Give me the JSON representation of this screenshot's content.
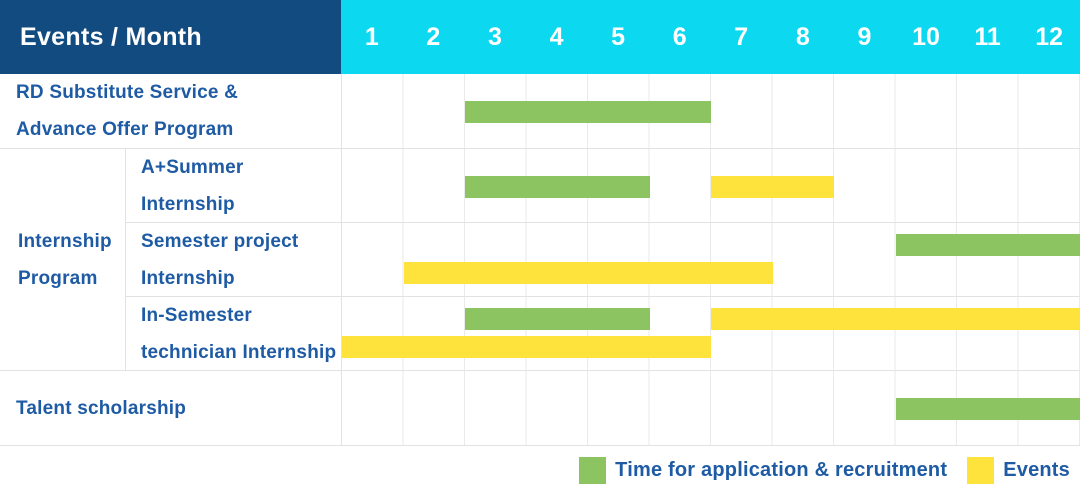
{
  "chart_data": {
    "type": "bar",
    "variant": "gantt-schedule",
    "header_title": "Events / Month",
    "months": [
      "1",
      "2",
      "3",
      "4",
      "5",
      "6",
      "7",
      "8",
      "9",
      "10",
      "11",
      "12"
    ],
    "x_axis_label": "Month",
    "x_range": [
      1,
      12
    ],
    "colors": {
      "header_bg": "#114b80",
      "months_bg": "#0cd8f0",
      "label_text": "#1e5ba4",
      "green": "#8cc462",
      "yellow": "#fde33c"
    },
    "groups": [
      {
        "id": "internship-program",
        "label_lines": [
          "Internship",
          "Program"
        ],
        "row_start": 2,
        "row_end": 4
      }
    ],
    "rows": [
      {
        "label_lines": [
          "RD Substitute Service &",
          "Advance Offer Program"
        ],
        "group": null,
        "bars": [
          {
            "type": "green",
            "start_month": 3,
            "end_month": 6,
            "lane": "single"
          }
        ]
      },
      {
        "label_lines": [
          "A+Summer",
          "Internship"
        ],
        "group": "internship-program",
        "bars": [
          {
            "type": "green",
            "start_month": 3,
            "end_month": 5,
            "lane": "single"
          },
          {
            "type": "yellow",
            "start_month": 7,
            "end_month": 8,
            "lane": "single"
          }
        ]
      },
      {
        "label_lines": [
          "Semester project",
          "Internship"
        ],
        "group": "internship-program",
        "bars": [
          {
            "type": "green",
            "start_month": 10,
            "end_month": 12,
            "lane": "top"
          },
          {
            "type": "yellow",
            "start_month": 2,
            "end_month": 7,
            "lane": "bottom"
          }
        ]
      },
      {
        "label_lines": [
          "In-Semester",
          "technician Internship"
        ],
        "group": "internship-program",
        "bars": [
          {
            "type": "green",
            "start_month": 3,
            "end_month": 5,
            "lane": "top"
          },
          {
            "type": "yellow",
            "start_month": 7,
            "end_month": 12,
            "lane": "top"
          },
          {
            "type": "yellow",
            "start_month": 1,
            "end_month": 6,
            "lane": "bottom"
          }
        ]
      },
      {
        "label_lines": [
          "Talent scholarship"
        ],
        "group": null,
        "bars": [
          {
            "type": "green",
            "start_month": 10,
            "end_month": 12,
            "lane": "single"
          }
        ]
      }
    ],
    "legend": [
      {
        "swatch": "green",
        "label": "Time for application & recruitment"
      },
      {
        "swatch": "yellow",
        "label": "Events"
      }
    ]
  }
}
